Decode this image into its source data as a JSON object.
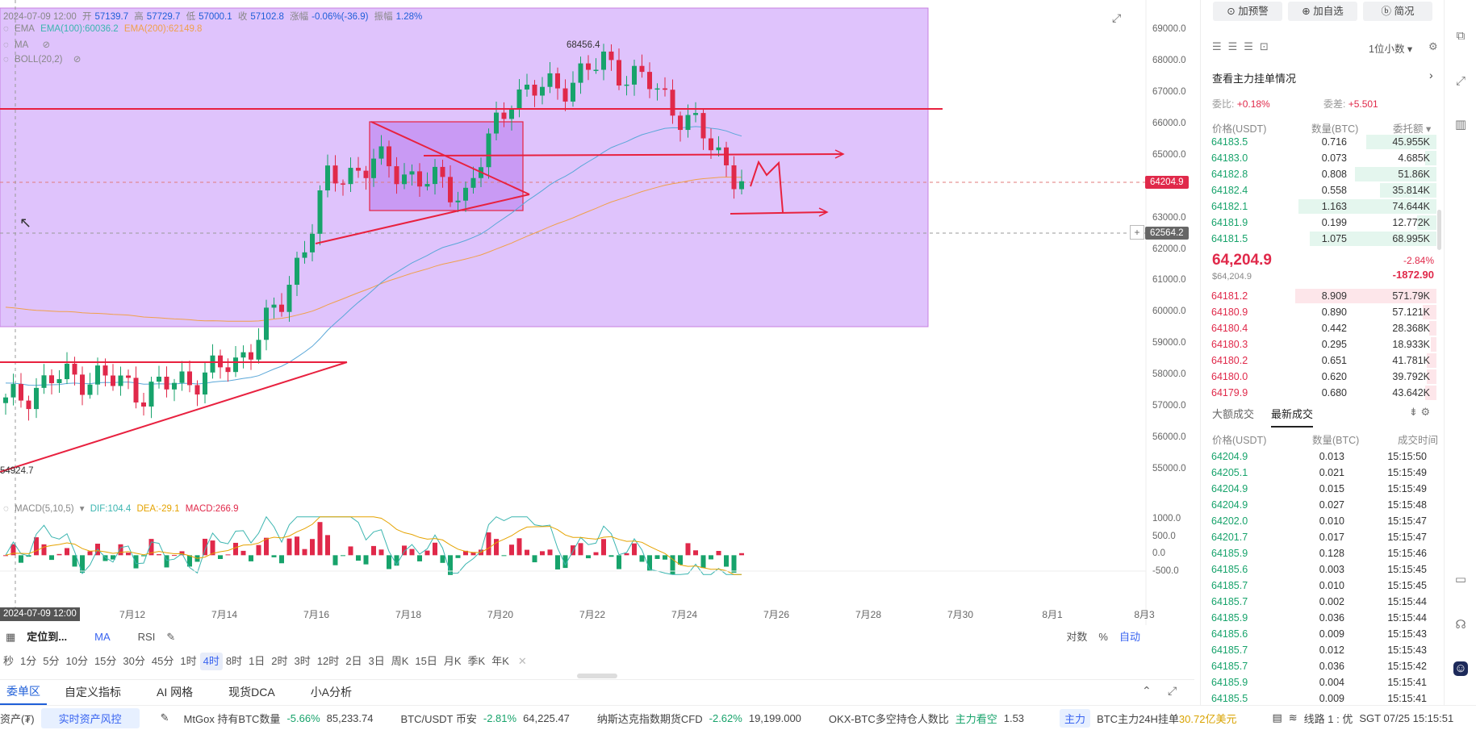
{
  "chart_header": {
    "datetime": "2024-07-09 12:00",
    "open_label": "开",
    "open": "57139.7",
    "high_label": "高",
    "high": "57729.7",
    "low_label": "低",
    "low": "57000.1",
    "close_label": "收",
    "close": "57102.8",
    "change_label": "涨幅",
    "change": "-0.06%(-36.9)",
    "amp_label": "振幅",
    "amp": "1.28%"
  },
  "indicators": {
    "ema_label": "EMA",
    "ema100": "EMA(100):60036.2",
    "ema200": "EMA(200):62149.8",
    "ma_label": "MA",
    "boll_label": "BOLL(20,2)",
    "macd_label": "MACD(5,10,5)",
    "dif": "DIF:104.4",
    "dea": "DEA:-29.1",
    "macd": "MACD:266.9"
  },
  "annotations": {
    "high_price": "68456.4",
    "low_price": "54924.7"
  },
  "price_tags": {
    "current": "64204.9",
    "crosshair": "62564.2",
    "crosshair_time": "2024-07-09 12:00"
  },
  "colors": {
    "up": "#17a36b",
    "down": "#e0294a",
    "zone": "#d9b8fb",
    "ema100": "#5aa7d8",
    "ema200": "#f0a04b",
    "line_red": "#e8213f",
    "accent": "#3863f0"
  },
  "chart_data": [
    {
      "type": "candlestick",
      "x_axis_labels": [
        "7月12",
        "7月14",
        "7月16",
        "7月18",
        "7月20",
        "7月22",
        "7月24",
        "7月26",
        "7月28",
        "7月30",
        "8月1",
        "8月3"
      ],
      "y_axis_labels": [
        "69000.0",
        "68000.0",
        "67000.0",
        "66000.0",
        "65000.0",
        "64000.0",
        "63000.0",
        "62000.0",
        "61000.0",
        "60000.0",
        "59000.0",
        "58000.0",
        "57000.0",
        "56000.0",
        "55000.0"
      ],
      "ylim": [
        54700,
        69400
      ],
      "trend": [
        {
          "date": "7月9",
          "close": 57100
        },
        {
          "date": "7月10",
          "close": 57900
        },
        {
          "date": "7月11",
          "close": 58000
        },
        {
          "date": "7月12",
          "close": 57500
        },
        {
          "date": "7月13",
          "close": 57900
        },
        {
          "date": "7月14",
          "close": 58400
        },
        {
          "date": "7月15",
          "close": 60300
        },
        {
          "date": "7月16",
          "close": 64200
        },
        {
          "date": "7月17",
          "close": 64800
        },
        {
          "date": "7月18",
          "close": 64300
        },
        {
          "date": "7月19",
          "close": 63800
        },
        {
          "date": "7月20",
          "close": 67000
        },
        {
          "date": "7月21",
          "close": 67200
        },
        {
          "date": "7月22",
          "close": 68000
        },
        {
          "date": "7月23",
          "close": 67300
        },
        {
          "date": "7月24",
          "close": 65900
        },
        {
          "date": "7月25",
          "close": 64204.9
        }
      ]
    },
    {
      "type": "bar",
      "title": "MACD(5,10,5)",
      "y_axis_labels": [
        "1000.0",
        "500.0",
        "0.0",
        "-500.0"
      ],
      "ylim": [
        -550,
        1150
      ]
    }
  ],
  "toolbar": {
    "locate": "定位到...",
    "ma": "MA",
    "rsi": "RSI",
    "log": "对数",
    "pct": "%",
    "auto": "自动",
    "intervals": [
      "秒",
      "1分",
      "5分",
      "10分",
      "15分",
      "30分",
      "45分",
      "1时",
      "4时",
      "8时",
      "1日",
      "2时",
      "3时",
      "12时",
      "2日",
      "3日",
      "周K",
      "15日",
      "月K",
      "季K",
      "年K"
    ],
    "active_interval": "4时"
  },
  "bottom_tabs": [
    "委单区",
    "自定义指标",
    "AI 网格",
    "现货DCA",
    "小A分析"
  ],
  "ticker": {
    "left_label": "资产(₮)",
    "risk": "实时资产风控",
    "i1_name": "MtGox 持有BTC数量",
    "i1_chg": "-5.66%",
    "i1_val": "85,233.74",
    "i2_name": "BTC/USDT 币安",
    "i2_chg": "-2.81%",
    "i2_val": "64,225.47",
    "i3_name": "纳斯达克指数期货CFD",
    "i3_chg": "-2.62%",
    "i3_val": "19,199.000",
    "i4_name": "OKX-BTC多空持仓人数比",
    "i4_tag": "主力看空",
    "i4_val": "1.53",
    "i5_tag": "主力",
    "i5_name": "BTC主力24H挂单",
    "i5_val": "30.72亿美元",
    "line": "线路 1 : 优",
    "clock": "SGT 07/25 15:15:51"
  },
  "panel": {
    "btn_alert": "加预警",
    "btn_fav": "加自选",
    "btn_brief": "简况",
    "precision": "1位小数",
    "orders_link": "查看主力挂单情况",
    "ratio_label": "委比:",
    "ratio": "+0.18%",
    "diff_label": "委差:",
    "diff": "+5.501",
    "col_price": "价格(USDT)",
    "col_qty": "数量(BTC)",
    "col_amt": "委托额",
    "bids": [
      {
        "p": "64183.5",
        "q": "0.716",
        "a": "45.955K",
        "w": 0.5
      },
      {
        "p": "64183.0",
        "q": "0.073",
        "a": "4.685K",
        "w": 0.08
      },
      {
        "p": "64182.8",
        "q": "0.808",
        "a": "51.86K",
        "w": 0.58
      },
      {
        "p": "64182.4",
        "q": "0.558",
        "a": "35.814K",
        "w": 0.4
      },
      {
        "p": "64182.1",
        "q": "1.163",
        "a": "74.644K",
        "w": 0.98
      },
      {
        "p": "64181.9",
        "q": "0.199",
        "a": "12.772K",
        "w": 0.14
      },
      {
        "p": "64181.5",
        "q": "1.075",
        "a": "68.995K",
        "w": 0.9
      }
    ],
    "last_price": "64,204.9",
    "last_price_usd": "$64,204.9",
    "last_chg_pct": "-2.84%",
    "last_chg": "-1872.90",
    "asks": [
      {
        "p": "64181.2",
        "q": "8.909",
        "a": "571.79K",
        "w": 1.0
      },
      {
        "p": "64180.9",
        "q": "0.890",
        "a": "57.121K",
        "w": 0.1
      },
      {
        "p": "64180.4",
        "q": "0.442",
        "a": "28.368K",
        "w": 0.05
      },
      {
        "p": "64180.3",
        "q": "0.295",
        "a": "18.933K",
        "w": 0.04
      },
      {
        "p": "64180.2",
        "q": "0.651",
        "a": "41.781K",
        "w": 0.07
      },
      {
        "p": "64180.0",
        "q": "0.620",
        "a": "39.792K",
        "w": 0.07
      },
      {
        "p": "64179.9",
        "q": "0.680",
        "a": "43.642K",
        "w": 0.08
      }
    ],
    "tab_large": "大额成交",
    "tab_latest": "最新成交",
    "tr_col_price": "价格(USDT)",
    "tr_col_qty": "数量(BTC)",
    "tr_col_time": "成交时间",
    "trades": [
      {
        "p": "64204.9",
        "q": "0.013",
        "t": "15:15:50"
      },
      {
        "p": "64205.1",
        "q": "0.021",
        "t": "15:15:49"
      },
      {
        "p": "64204.9",
        "q": "0.015",
        "t": "15:15:49"
      },
      {
        "p": "64204.9",
        "q": "0.027",
        "t": "15:15:48"
      },
      {
        "p": "64202.0",
        "q": "0.010",
        "t": "15:15:47"
      },
      {
        "p": "64201.7",
        "q": "0.017",
        "t": "15:15:47"
      },
      {
        "p": "64185.9",
        "q": "0.128",
        "t": "15:15:46"
      },
      {
        "p": "64185.6",
        "q": "0.003",
        "t": "15:15:45"
      },
      {
        "p": "64185.7",
        "q": "0.010",
        "t": "15:15:45"
      },
      {
        "p": "64185.7",
        "q": "0.002",
        "t": "15:15:44"
      },
      {
        "p": "64185.9",
        "q": "0.036",
        "t": "15:15:44"
      },
      {
        "p": "64185.6",
        "q": "0.009",
        "t": "15:15:43"
      },
      {
        "p": "64185.7",
        "q": "0.012",
        "t": "15:15:43"
      },
      {
        "p": "64185.7",
        "q": "0.036",
        "t": "15:15:42"
      },
      {
        "p": "64185.9",
        "q": "0.004",
        "t": "15:15:41"
      },
      {
        "p": "64185.5",
        "q": "0.009",
        "t": "15:15:41"
      }
    ]
  }
}
